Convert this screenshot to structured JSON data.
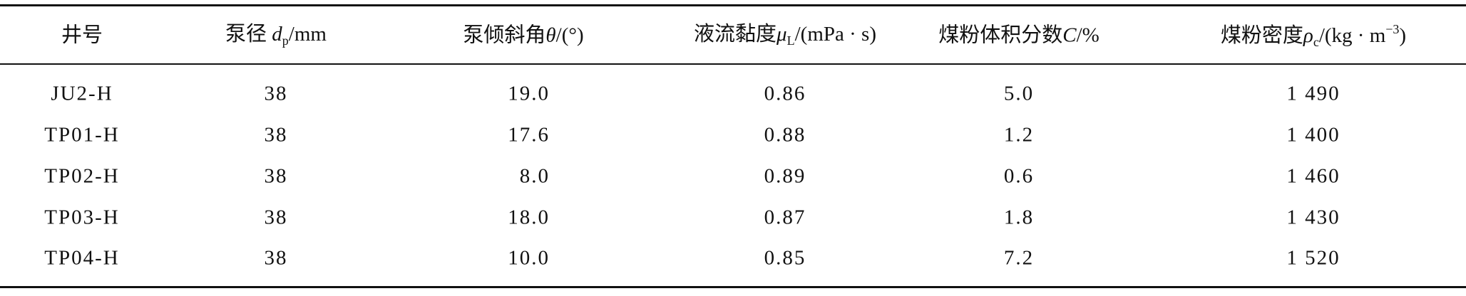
{
  "table": {
    "header": [
      [
        "井号"
      ],
      [
        "泵径",
        "d",
        "p",
        "/mm"
      ],
      [
        "泵倾斜角",
        "θ",
        "/(°)"
      ],
      [
        "液流黏度",
        "μ",
        "L",
        "/(mPa · s)"
      ],
      [
        "煤粉体积分数",
        "C",
        "/%"
      ],
      [
        "煤粉密度",
        "ρ",
        "c",
        "/(kg · m",
        "−3",
        ")"
      ]
    ],
    "rows": [
      [
        "JU2-H",
        "38",
        "19.0",
        "0.86",
        "5.0",
        "1 490"
      ],
      [
        "TP01-H",
        "38",
        "17.6",
        "0.88",
        "1.2",
        "1 400"
      ],
      [
        "TP02-H",
        "38",
        "8.0",
        "0.89",
        "0.6",
        "1 460"
      ],
      [
        "TP03-H",
        "38",
        "18.0",
        "0.87",
        "1.8",
        "1 430"
      ],
      [
        "TP04-H",
        "38",
        "10.0",
        "0.85",
        "7.2",
        "1 520"
      ]
    ]
  }
}
